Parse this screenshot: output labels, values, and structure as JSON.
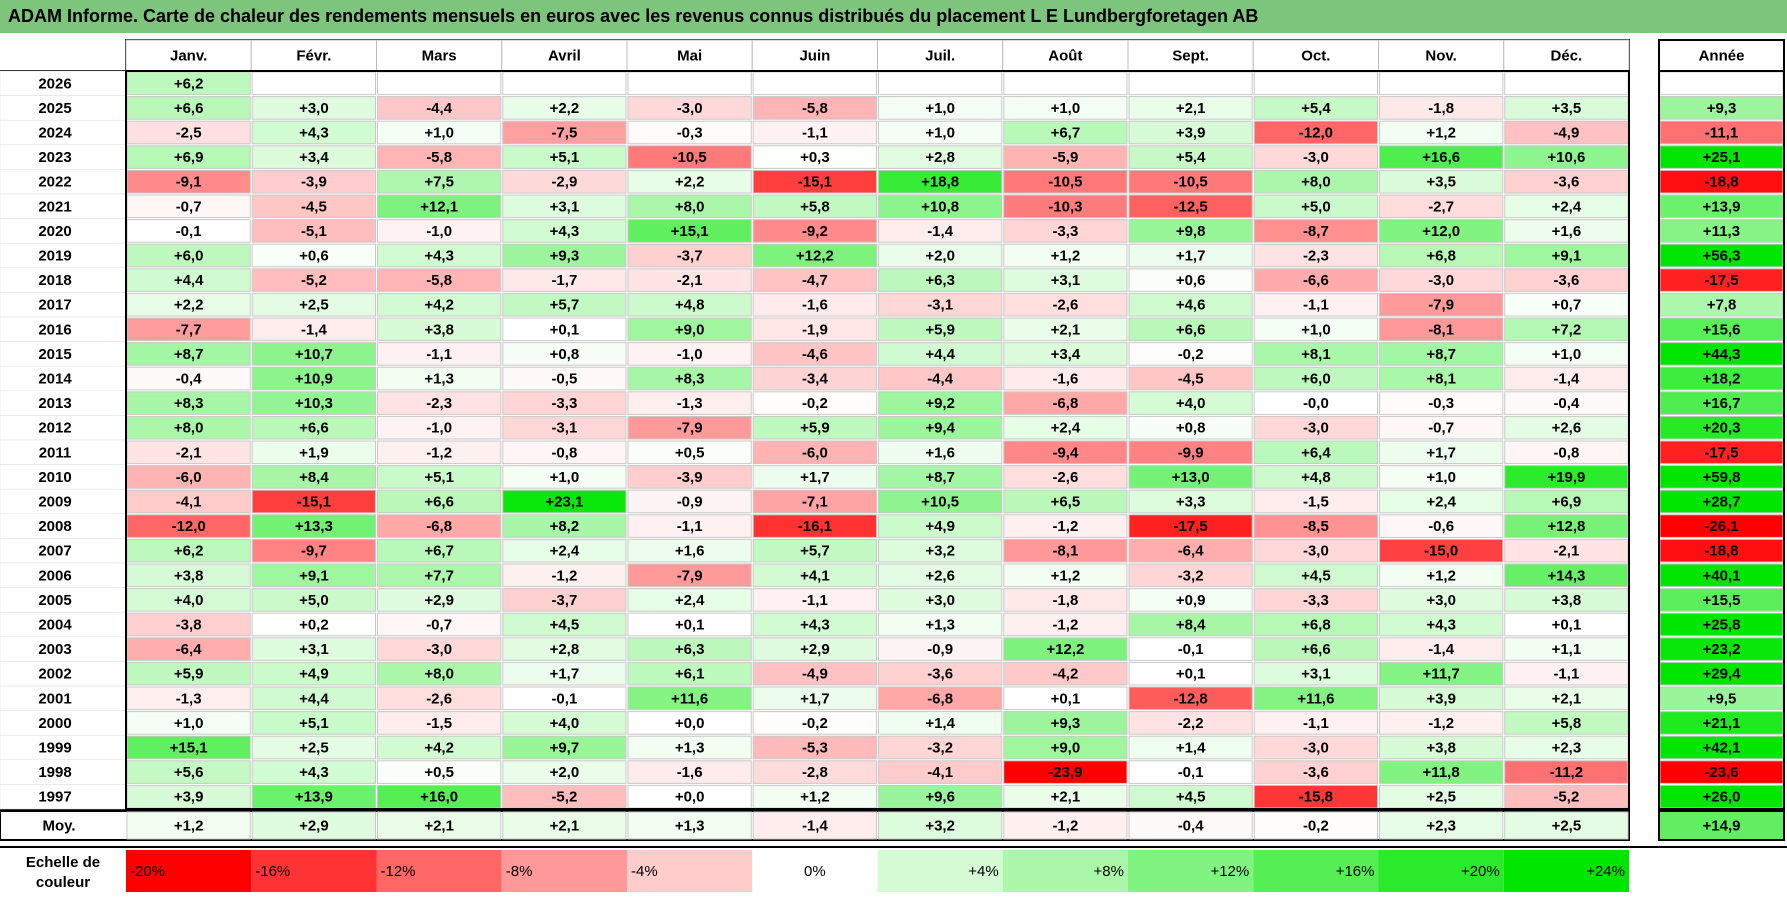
{
  "title": "ADAM Informe. Carte de chaleur des rendements mensuels en euros avec les revenus connus distribués du placement L E Lundbergforetagen AB",
  "year_header": "Année",
  "average_label": "Moy.",
  "scale_label_line1": "Echelle de",
  "scale_label_line2": "couleur",
  "colors": {
    "title_bar": "#7dc47d",
    "negative_max": "#ff0000",
    "positive_max": "#00e600",
    "neutral": "#ffffff"
  },
  "chart_data": {
    "type": "heatmap",
    "months": [
      "Janv.",
      "Févr.",
      "Mars",
      "Avril",
      "Mai",
      "Juin",
      "Juil.",
      "Août",
      "Sept.",
      "Oct.",
      "Nov.",
      "Déc."
    ],
    "rows": [
      {
        "year": "2026",
        "values": [
          "+6,2",
          null,
          null,
          null,
          null,
          null,
          null,
          null,
          null,
          null,
          null,
          null
        ],
        "annual": null
      },
      {
        "year": "2025",
        "values": [
          "+6,6",
          "+3,0",
          "-4,4",
          "+2,2",
          "-3,0",
          "-5,8",
          "+1,0",
          "+1,0",
          "+2,1",
          "+5,4",
          "-1,8",
          "+3,5"
        ],
        "annual": "+9,3"
      },
      {
        "year": "2024",
        "values": [
          "-2,5",
          "+4,3",
          "+1,0",
          "-7,5",
          "-0,3",
          "-1,1",
          "+1,0",
          "+6,7",
          "+3,9",
          "-12,0",
          "+1,2",
          "-4,9"
        ],
        "annual": "-11,1"
      },
      {
        "year": "2023",
        "values": [
          "+6,9",
          "+3,4",
          "-5,8",
          "+5,1",
          "-10,5",
          "+0,3",
          "+2,8",
          "-5,9",
          "+5,4",
          "-3,0",
          "+16,6",
          "+10,6"
        ],
        "annual": "+25,1"
      },
      {
        "year": "2022",
        "values": [
          "-9,1",
          "-3,9",
          "+7,5",
          "-2,9",
          "+2,2",
          "-15,1",
          "+18,8",
          "-10,5",
          "-10,5",
          "+8,0",
          "+3,5",
          "-3,6"
        ],
        "annual": "-18,8"
      },
      {
        "year": "2021",
        "values": [
          "-0,7",
          "-4,5",
          "+12,1",
          "+3,1",
          "+8,0",
          "+5,8",
          "+10,8",
          "-10,3",
          "-12,5",
          "+5,0",
          "-2,7",
          "+2,4"
        ],
        "annual": "+13,9"
      },
      {
        "year": "2020",
        "values": [
          "-0,1",
          "-5,1",
          "-1,0",
          "+4,3",
          "+15,1",
          "-9,2",
          "-1,4",
          "-3,3",
          "+9,8",
          "-8,7",
          "+12,0",
          "+1,6"
        ],
        "annual": "+11,3"
      },
      {
        "year": "2019",
        "values": [
          "+6,0",
          "+0,6",
          "+4,3",
          "+9,3",
          "-3,7",
          "+12,2",
          "+2,0",
          "+1,2",
          "+1,7",
          "-2,3",
          "+6,8",
          "+9,1"
        ],
        "annual": "+56,3"
      },
      {
        "year": "2018",
        "values": [
          "+4,4",
          "-5,2",
          "-5,8",
          "-1,7",
          "-2,1",
          "-4,7",
          "+6,3",
          "+3,1",
          "+0,6",
          "-6,6",
          "-3,0",
          "-3,6"
        ],
        "annual": "-17,5"
      },
      {
        "year": "2017",
        "values": [
          "+2,2",
          "+2,5",
          "+4,2",
          "+5,7",
          "+4,8",
          "-1,6",
          "-3,1",
          "-2,6",
          "+4,6",
          "-1,1",
          "-7,9",
          "+0,7"
        ],
        "annual": "+7,8"
      },
      {
        "year": "2016",
        "values": [
          "-7,7",
          "-1,4",
          "+3,8",
          "+0,1",
          "+9,0",
          "-1,9",
          "+5,9",
          "+2,1",
          "+6,6",
          "+1,0",
          "-8,1",
          "+7,2"
        ],
        "annual": "+15,6"
      },
      {
        "year": "2015",
        "values": [
          "+8,7",
          "+10,7",
          "-1,1",
          "+0,8",
          "-1,0",
          "-4,6",
          "+4,4",
          "+3,4",
          "-0,2",
          "+8,1",
          "+8,7",
          "+1,0"
        ],
        "annual": "+44,3"
      },
      {
        "year": "2014",
        "values": [
          "-0,4",
          "+10,9",
          "+1,3",
          "-0,5",
          "+8,3",
          "-3,4",
          "-4,4",
          "-1,6",
          "-4,5",
          "+6,0",
          "+8,1",
          "-1,4"
        ],
        "annual": "+18,2"
      },
      {
        "year": "2013",
        "values": [
          "+8,3",
          "+10,3",
          "-2,3",
          "-3,3",
          "-1,3",
          "-0,2",
          "+9,2",
          "-6,8",
          "+4,0",
          "-0,0",
          "-0,3",
          "-0,4"
        ],
        "annual": "+16,7"
      },
      {
        "year": "2012",
        "values": [
          "+8,0",
          "+6,6",
          "-1,0",
          "-3,1",
          "-7,9",
          "+5,9",
          "+9,4",
          "+2,4",
          "+0,8",
          "-3,0",
          "-0,7",
          "+2,6"
        ],
        "annual": "+20,3"
      },
      {
        "year": "2011",
        "values": [
          "-2,1",
          "+1,9",
          "-1,2",
          "-0,8",
          "+0,5",
          "-6,0",
          "+1,6",
          "-9,4",
          "-9,9",
          "+6,4",
          "+1,7",
          "-0,8"
        ],
        "annual": "-17,5"
      },
      {
        "year": "2010",
        "values": [
          "-6,0",
          "+8,4",
          "+5,1",
          "+1,0",
          "-3,9",
          "+1,7",
          "+8,7",
          "-2,6",
          "+13,0",
          "+4,8",
          "+1,0",
          "+19,9"
        ],
        "annual": "+59,8"
      },
      {
        "year": "2009",
        "values": [
          "-4,1",
          "-15,1",
          "+6,6",
          "+23,1",
          "-0,9",
          "-7,1",
          "+10,5",
          "+6,5",
          "+3,3",
          "-1,5",
          "+2,4",
          "+6,9"
        ],
        "annual": "+28,7"
      },
      {
        "year": "2008",
        "values": [
          "-12,0",
          "+13,3",
          "-6,8",
          "+8,2",
          "-1,1",
          "-16,1",
          "+4,9",
          "-1,2",
          "-17,5",
          "-8,5",
          "-0,6",
          "+12,8"
        ],
        "annual": "-26,1"
      },
      {
        "year": "2007",
        "values": [
          "+6,2",
          "-9,7",
          "+6,7",
          "+2,4",
          "+1,6",
          "+5,7",
          "+3,2",
          "-8,1",
          "-6,4",
          "-3,0",
          "-15,0",
          "-2,1"
        ],
        "annual": "-18,8"
      },
      {
        "year": "2006",
        "values": [
          "+3,8",
          "+9,1",
          "+7,7",
          "-1,2",
          "-7,9",
          "+4,1",
          "+2,6",
          "+1,2",
          "-3,2",
          "+4,5",
          "+1,2",
          "+14,3"
        ],
        "annual": "+40,1"
      },
      {
        "year": "2005",
        "values": [
          "+4,0",
          "+5,0",
          "+2,9",
          "-3,7",
          "+2,4",
          "-1,1",
          "+3,0",
          "-1,8",
          "+0,9",
          "-3,3",
          "+3,0",
          "+3,8"
        ],
        "annual": "+15,5"
      },
      {
        "year": "2004",
        "values": [
          "-3,8",
          "+0,2",
          "-0,7",
          "+4,5",
          "+0,1",
          "+4,3",
          "+1,3",
          "-1,2",
          "+8,4",
          "+6,8",
          "+4,3",
          "+0,1"
        ],
        "annual": "+25,8"
      },
      {
        "year": "2003",
        "values": [
          "-6,4",
          "+3,1",
          "-3,0",
          "+2,8",
          "+6,3",
          "+2,9",
          "-0,9",
          "+12,2",
          "-0,1",
          "+6,6",
          "-1,4",
          "+1,1"
        ],
        "annual": "+23,2"
      },
      {
        "year": "2002",
        "values": [
          "+5,9",
          "+4,9",
          "+8,0",
          "+1,7",
          "+6,1",
          "-4,9",
          "-3,6",
          "-4,2",
          "+0,1",
          "+3,1",
          "+11,7",
          "-1,1"
        ],
        "annual": "+29,4"
      },
      {
        "year": "2001",
        "values": [
          "-1,3",
          "+4,4",
          "-2,6",
          "-0,1",
          "+11,6",
          "+1,7",
          "-6,8",
          "+0,1",
          "-12,8",
          "+11,6",
          "+3,9",
          "+2,1"
        ],
        "annual": "+9,5"
      },
      {
        "year": "2000",
        "values": [
          "+1,0",
          "+5,1",
          "-1,5",
          "+4,0",
          "+0,0",
          "-0,2",
          "+1,4",
          "+9,3",
          "-2,2",
          "-1,1",
          "-1,2",
          "+5,8"
        ],
        "annual": "+21,1"
      },
      {
        "year": "1999",
        "values": [
          "+15,1",
          "+2,5",
          "+4,2",
          "+9,7",
          "+1,3",
          "-5,3",
          "-3,2",
          "+9,0",
          "+1,4",
          "-3,0",
          "+3,8",
          "+2,3"
        ],
        "annual": "+42,1"
      },
      {
        "year": "1998",
        "values": [
          "+5,6",
          "+4,3",
          "+0,5",
          "+2,0",
          "-1,6",
          "-2,8",
          "-4,1",
          "-23,9",
          "-0,1",
          "-3,6",
          "+11,8",
          "-11,2"
        ],
        "annual": "-23,6"
      },
      {
        "year": "1997",
        "values": [
          "+3,9",
          "+13,9",
          "+16,0",
          "-5,2",
          "+0,0",
          "+1,2",
          "+9,6",
          "+2,1",
          "+4,5",
          "-15,8",
          "+2,5",
          "-5,2"
        ],
        "annual": "+26,0"
      }
    ],
    "average": {
      "values": [
        "+1,2",
        "+2,9",
        "+2,1",
        "+2,1",
        "+1,3",
        "-1,4",
        "+3,2",
        "-1,2",
        "-0,4",
        "-0,2",
        "+2,3",
        "+2,5"
      ],
      "annual": "+14,9"
    },
    "color_scale": [
      "-20%",
      "-16%",
      "-12%",
      "-8%",
      "-4%",
      "0%",
      "+4%",
      "+8%",
      "+12%",
      "+16%",
      "+20%",
      "+24%"
    ]
  }
}
